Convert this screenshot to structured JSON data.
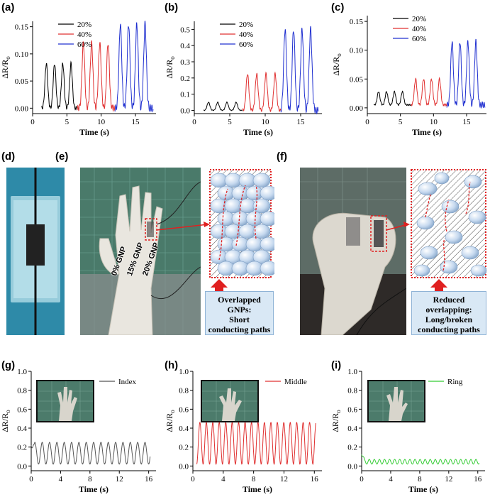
{
  "panel_labels": {
    "a": "(a)",
    "b": "(b)",
    "c": "(c)",
    "d": "(d)",
    "e": "(e)",
    "f": "(f)",
    "g": "(g)",
    "h": "(h)",
    "i": "(i)"
  },
  "y_axis_label": "ΔR/R",
  "y_axis_sub": "o",
  "x_axis_label": "Time (s)",
  "gnp_labels": [
    "0% GNP",
    "15% GNP",
    "20% GNP"
  ],
  "callout_e": [
    "Overlapped",
    "GNPs:",
    "Short",
    "conducting paths"
  ],
  "callout_f": [
    "Reduced",
    "overlapping:",
    "Long/broken",
    "conducting paths"
  ],
  "colors": {
    "black": "#000000",
    "red": "#e03030",
    "blue": "#2030d0",
    "gray": "#555555",
    "green": "#33cc33"
  },
  "chart_data": [
    {
      "id": "a",
      "type": "line",
      "xlabel": "Time (s)",
      "ylabel": "ΔR/Ro",
      "xlim": [
        0,
        18
      ],
      "ylim": [
        -0.01,
        0.16
      ],
      "xticks": [
        0,
        5,
        10,
        15
      ],
      "yticks": [
        0.0,
        0.05,
        0.1,
        0.15
      ],
      "ytick_labels": [
        "0.00",
        "0.05",
        "0.10",
        "0.15"
      ],
      "legend": {
        "position": "top-left",
        "entries": [
          "20%",
          "40%",
          "60%"
        ]
      },
      "series": [
        {
          "name": "20%",
          "color": "#000000",
          "x_range": [
            1.3,
            6.5
          ],
          "peaks": [
            2.0,
            3.2,
            4.4,
            5.6
          ],
          "peak_value": 0.082,
          "base": 0.0
        },
        {
          "name": "40%",
          "color": "#e03030",
          "x_range": [
            6.5,
            12.0
          ],
          "peaks": [
            7.4,
            8.6,
            9.8,
            11.0
          ],
          "peak_value": 0.12,
          "base": 0.0
        },
        {
          "name": "60%",
          "color": "#2030d0",
          "x_range": [
            12.0,
            17.6
          ],
          "peaks": [
            12.8,
            14.0,
            15.2,
            16.4
          ],
          "peak_value": 0.155,
          "base": 0.0
        }
      ]
    },
    {
      "id": "b",
      "type": "line",
      "xlabel": "Time (s)",
      "ylabel": "ΔR/Ro",
      "xlim": [
        0,
        18
      ],
      "ylim": [
        -0.02,
        0.55
      ],
      "xticks": [
        0,
        5,
        10,
        15
      ],
      "yticks": [
        0.0,
        0.1,
        0.2,
        0.3,
        0.4,
        0.5
      ],
      "ytick_labels": [
        "0.0",
        "0.1",
        "0.2",
        "0.3",
        "0.4",
        "0.5"
      ],
      "legend": {
        "position": "top-left",
        "entries": [
          "20%",
          "40%",
          "60%"
        ]
      },
      "series": [
        {
          "name": "20%",
          "color": "#000000",
          "x_range": [
            1.3,
            6.8
          ],
          "peaks": [
            2.0,
            3.3,
            4.6,
            5.9
          ],
          "peak_value": 0.05,
          "base": 0.0
        },
        {
          "name": "40%",
          "color": "#e03030",
          "x_range": [
            6.8,
            12.2
          ],
          "peaks": [
            7.5,
            8.8,
            10.1,
            11.4
          ],
          "peak_value": 0.225,
          "base": 0.0
        },
        {
          "name": "60%",
          "color": "#2030d0",
          "x_range": [
            12.2,
            17.5
          ],
          "peaks": [
            12.8,
            14.0,
            15.2,
            16.4
          ],
          "peak_value": 0.5,
          "base": 0.0
        }
      ]
    },
    {
      "id": "c",
      "type": "line",
      "xlabel": "Time (s)",
      "ylabel": "ΔR/Ro",
      "xlim": [
        0,
        18
      ],
      "ylim": [
        -0.01,
        0.16
      ],
      "xticks": [
        0,
        5,
        10,
        15
      ],
      "yticks": [
        0.0,
        0.05,
        0.1,
        0.15
      ],
      "ytick_labels": [
        "0.00",
        "0.05",
        "0.10",
        "0.15"
      ],
      "legend": {
        "position": "top-left",
        "entries": [
          "20%",
          "40%",
          "60%"
        ]
      },
      "series": [
        {
          "name": "20%",
          "color": "#000000",
          "x_range": [
            1.0,
            6.6
          ],
          "peaks": [
            1.7,
            2.9,
            4.1,
            5.3
          ],
          "peak_value": 0.028,
          "base": 0.005
        },
        {
          "name": "40%",
          "color": "#e03030",
          "x_range": [
            6.6,
            12.0
          ],
          "peaks": [
            7.3,
            8.5,
            9.7,
            10.9
          ],
          "peak_value": 0.05,
          "base": 0.005
        },
        {
          "name": "60%",
          "color": "#2030d0",
          "x_range": [
            12.0,
            17.8
          ],
          "peaks": [
            12.8,
            14.0,
            15.2,
            16.4
          ],
          "peak_value": 0.115,
          "base": 0.005
        }
      ]
    },
    {
      "id": "g",
      "type": "line",
      "xlabel": "Time (s)",
      "ylabel": "ΔR/Ro",
      "xlim": [
        0,
        17
      ],
      "ylim": [
        -0.05,
        1.0
      ],
      "xticks": [
        0,
        4,
        8,
        12,
        16
      ],
      "yticks": [
        0.0,
        0.2,
        0.4,
        0.6,
        0.8,
        1.0
      ],
      "ytick_labels": [
        "0.0",
        "0.2",
        "0.4",
        "0.6",
        "0.8",
        "1.0"
      ],
      "legend": {
        "position": "top-right",
        "entries": [
          "Index"
        ]
      },
      "series": [
        {
          "name": "Index",
          "color": "#555555",
          "x_range": [
            0,
            16.2
          ],
          "period": 1.0,
          "peak_value": 0.25,
          "trough_value": 0.02,
          "start": 0.2
        }
      ]
    },
    {
      "id": "h",
      "type": "line",
      "xlabel": "Time (s)",
      "ylabel": "ΔR/Ro",
      "xlim": [
        0,
        17
      ],
      "ylim": [
        -0.05,
        1.0
      ],
      "xticks": [
        0,
        4,
        8,
        12,
        16
      ],
      "yticks": [
        0.0,
        0.2,
        0.4,
        0.6,
        0.8,
        1.0
      ],
      "ytick_labels": [
        "0.0",
        "0.2",
        "0.4",
        "0.6",
        "0.8",
        "1.0"
      ],
      "legend": {
        "position": "top-right",
        "entries": [
          "Middle"
        ]
      },
      "series": [
        {
          "name": "Middle",
          "color": "#e03030",
          "x_range": [
            0.5,
            16.2
          ],
          "period": 0.85,
          "peak_value": 0.46,
          "trough_value": 0.02,
          "start": 0.0
        }
      ]
    },
    {
      "id": "i",
      "type": "line",
      "xlabel": "Time (s)",
      "ylabel": "ΔR/Ro",
      "xlim": [
        0,
        17
      ],
      "ylim": [
        -0.05,
        1.0
      ],
      "xticks": [
        0,
        4,
        8,
        12,
        16
      ],
      "yticks": [
        0.0,
        0.2,
        0.4,
        0.6,
        0.8,
        1.0
      ],
      "ytick_labels": [
        "0.0",
        "0.2",
        "0.4",
        "0.6",
        "0.8",
        "1.0"
      ],
      "legend": {
        "position": "top-right",
        "entries": [
          "Ring"
        ]
      },
      "series": [
        {
          "name": "Ring",
          "color": "#33cc33",
          "x_range": [
            0,
            16.2
          ],
          "period": 0.7,
          "peak_value": 0.07,
          "trough_value": 0.02,
          "start": 0.1
        }
      ]
    }
  ]
}
